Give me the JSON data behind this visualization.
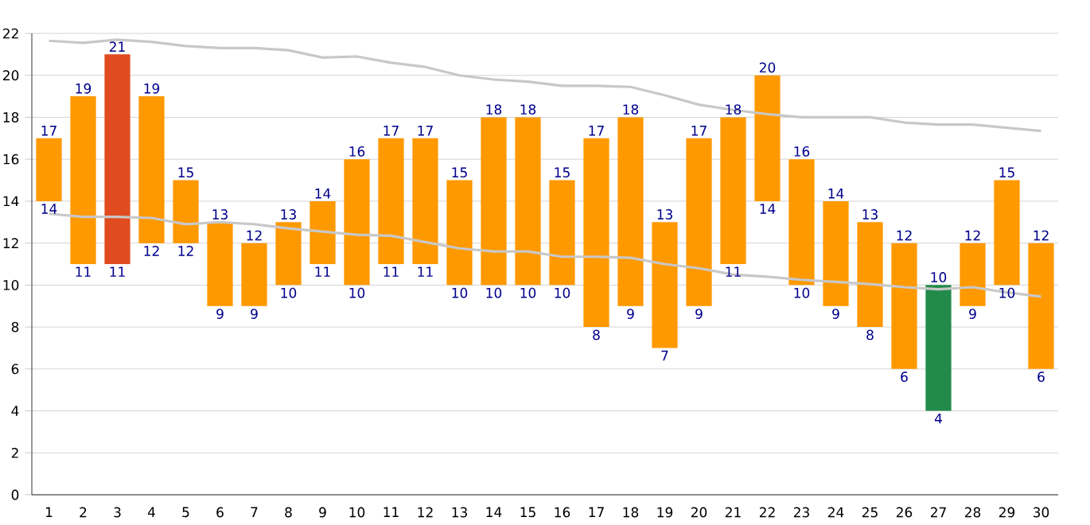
{
  "chart_data": {
    "type": "bar",
    "categories": [
      "1",
      "2",
      "3",
      "4",
      "5",
      "6",
      "7",
      "8",
      "9",
      "10",
      "11",
      "12",
      "13",
      "14",
      "15",
      "16",
      "17",
      "18",
      "19",
      "20",
      "21",
      "22",
      "23",
      "24",
      "25",
      "26",
      "27",
      "28",
      "29",
      "30"
    ],
    "series": [
      {
        "base": [
          14,
          11,
          11,
          12,
          12,
          9,
          9,
          10,
          11,
          10,
          11,
          11,
          10,
          10,
          10,
          10,
          8,
          9,
          7,
          9,
          11,
          14,
          10,
          9,
          8,
          6,
          4,
          9,
          10,
          6
        ],
        "values": [
          3,
          8,
          10,
          7,
          3,
          4,
          3,
          3,
          3,
          6,
          6,
          6,
          5,
          8,
          8,
          5,
          9,
          9,
          6,
          8,
          7,
          6,
          6,
          5,
          5,
          6,
          6,
          3,
          5,
          6
        ],
        "colors": [
          "#ff9900",
          "#ff9900",
          "#e04c1f",
          "#ff9900",
          "#ff9900",
          "#ff9900",
          "#ff9900",
          "#ff9900",
          "#ff9900",
          "#ff9900",
          "#ff9900",
          "#ff9900",
          "#ff9900",
          "#ff9900",
          "#ff9900",
          "#ff9900",
          "#ff9900",
          "#ff9900",
          "#ff9900",
          "#ff9900",
          "#ff9900",
          "#ff9900",
          "#ff9900",
          "#ff9900",
          "#ff9900",
          "#ff9900",
          "#228b4a",
          "#ff9900",
          "#ff9900",
          "#ff9900"
        ]
      },
      {
        "type": "line",
        "color": "#c8c8c8",
        "values": [
          21.65,
          21.55,
          21.7,
          21.6,
          21.4,
          21.3,
          21.3,
          21.2,
          20.85,
          20.9,
          20.6,
          20.4,
          20.0,
          19.8,
          19.7,
          19.5,
          19.5,
          19.45,
          19.05,
          18.6,
          18.35,
          18.15,
          18.0,
          18.0,
          18.0,
          17.75,
          17.65,
          17.65,
          17.5,
          17.35
        ]
      },
      {
        "type": "line",
        "color": "#c8c8c8",
        "values": [
          13.4,
          13.25,
          13.25,
          13.2,
          12.9,
          13.0,
          12.9,
          12.7,
          12.55,
          12.4,
          12.35,
          12.05,
          11.75,
          11.6,
          11.6,
          11.35,
          11.35,
          11.3,
          11.0,
          10.8,
          10.5,
          10.4,
          10.25,
          10.15,
          10.05,
          9.9,
          9.8,
          9.9,
          9.65,
          9.45
        ]
      }
    ],
    "ylim": [
      0,
      22
    ],
    "yticks": [
      0,
      2,
      4,
      6,
      8,
      10,
      12,
      14,
      16,
      18,
      20,
      22
    ],
    "grid": "y",
    "annotations": [
      {
        "text": "17",
        "x": "1",
        "y": 17
      },
      {
        "text": "14",
        "x": "1",
        "y": 14
      },
      {
        "text": "19",
        "x": "2",
        "y": 19
      },
      {
        "text": "11",
        "x": "2",
        "y": 11
      },
      {
        "text": "21",
        "x": "3",
        "y": 21
      },
      {
        "text": "11",
        "x": "3",
        "y": 11
      },
      {
        "text": "19",
        "x": "4",
        "y": 19
      },
      {
        "text": "12",
        "x": "4",
        "y": 12
      },
      {
        "text": "15",
        "x": "5",
        "y": 15
      },
      {
        "text": "12",
        "x": "5",
        "y": 12
      },
      {
        "text": "13",
        "x": "6",
        "y": 13
      },
      {
        "text": "9",
        "x": "6",
        "y": 9
      },
      {
        "text": "12",
        "x": "7",
        "y": 12
      },
      {
        "text": "9",
        "x": "7",
        "y": 9
      },
      {
        "text": "13",
        "x": "8",
        "y": 13
      },
      {
        "text": "10",
        "x": "8",
        "y": 10
      },
      {
        "text": "14",
        "x": "9",
        "y": 14
      },
      {
        "text": "11",
        "x": "9",
        "y": 11
      },
      {
        "text": "16",
        "x": "10",
        "y": 16
      },
      {
        "text": "10",
        "x": "10",
        "y": 10
      },
      {
        "text": "17",
        "x": "11",
        "y": 17
      },
      {
        "text": "11",
        "x": "11",
        "y": 11
      },
      {
        "text": "17",
        "x": "12",
        "y": 17
      },
      {
        "text": "11",
        "x": "12",
        "y": 11
      },
      {
        "text": "15",
        "x": "13",
        "y": 15
      },
      {
        "text": "10",
        "x": "13",
        "y": 10
      },
      {
        "text": "18",
        "x": "14",
        "y": 18
      },
      {
        "text": "10",
        "x": "14",
        "y": 10
      },
      {
        "text": "18",
        "x": "15",
        "y": 18
      },
      {
        "text": "10",
        "x": "15",
        "y": 10
      },
      {
        "text": "15",
        "x": "16",
        "y": 15
      },
      {
        "text": "10",
        "x": "16",
        "y": 10
      },
      {
        "text": "17",
        "x": "17",
        "y": 17
      },
      {
        "text": "8",
        "x": "17",
        "y": 8
      },
      {
        "text": "18",
        "x": "18",
        "y": 18
      },
      {
        "text": "9",
        "x": "18",
        "y": 9
      },
      {
        "text": "13",
        "x": "19",
        "y": 13
      },
      {
        "text": "7",
        "x": "19",
        "y": 7
      },
      {
        "text": "17",
        "x": "20",
        "y": 17
      },
      {
        "text": "9",
        "x": "20",
        "y": 9
      },
      {
        "text": "18",
        "x": "21",
        "y": 18
      },
      {
        "text": "11",
        "x": "21",
        "y": 11
      },
      {
        "text": "20",
        "x": "22",
        "y": 20
      },
      {
        "text": "14",
        "x": "22",
        "y": 14
      },
      {
        "text": "16",
        "x": "23",
        "y": 16
      },
      {
        "text": "10",
        "x": "23",
        "y": 10
      },
      {
        "text": "14",
        "x": "24",
        "y": 14
      },
      {
        "text": "9",
        "x": "24",
        "y": 9
      },
      {
        "text": "13",
        "x": "25",
        "y": 13
      },
      {
        "text": "8",
        "x": "25",
        "y": 8
      },
      {
        "text": "12",
        "x": "26",
        "y": 12
      },
      {
        "text": "6",
        "x": "26",
        "y": 6
      },
      {
        "text": "10",
        "x": "27",
        "y": 10
      },
      {
        "text": "4",
        "x": "27",
        "y": 4
      },
      {
        "text": "12",
        "x": "28",
        "y": 12
      },
      {
        "text": "9",
        "x": "28",
        "y": 9
      },
      {
        "text": "15",
        "x": "29",
        "y": 15
      },
      {
        "text": "10",
        "x": "29",
        "y": 10
      },
      {
        "text": "12",
        "x": "30",
        "y": 12
      },
      {
        "text": "6",
        "x": "30",
        "y": 6
      }
    ]
  }
}
